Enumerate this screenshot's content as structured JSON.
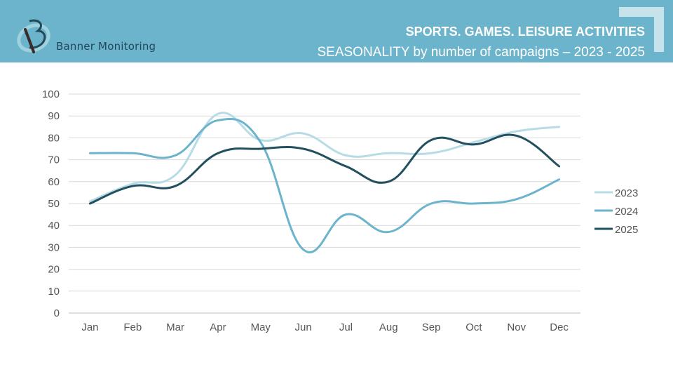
{
  "header": {
    "brand": "Banner Monitoring",
    "title": "SPORTS. GAMES. LEISURE ACTIVITIES",
    "subtitle": "SEASONALITY by number of campaigns – 2023 - 2025",
    "background_color": "#6bb4cc"
  },
  "chart_data": {
    "type": "line",
    "title": "SEASONALITY by number of campaigns – 2023 - 2025",
    "xlabel": "",
    "ylabel": "",
    "categories": [
      "Jan",
      "Feb",
      "Mar",
      "Apr",
      "May",
      "Jun",
      "Jul",
      "Aug",
      "Sep",
      "Oct",
      "Nov",
      "Dec"
    ],
    "ylim": [
      0,
      100
    ],
    "yticks": [
      0,
      10,
      20,
      30,
      40,
      50,
      60,
      70,
      80,
      90,
      100
    ],
    "grid": true,
    "legend_position": "right",
    "smooth": true,
    "series": [
      {
        "name": "2023",
        "color": "#b7dce6",
        "values": [
          51,
          59,
          63,
          91,
          79,
          82,
          72,
          73,
          73,
          78,
          83,
          85
        ]
      },
      {
        "name": "2024",
        "color": "#6bb4cc",
        "values": [
          73,
          73,
          72,
          88,
          78,
          29,
          45,
          37,
          50,
          50,
          52,
          61
        ]
      },
      {
        "name": "2025",
        "color": "#23505f",
        "values": [
          50,
          58,
          58,
          73,
          75,
          75,
          67,
          60,
          79,
          77,
          81,
          67
        ]
      }
    ]
  }
}
